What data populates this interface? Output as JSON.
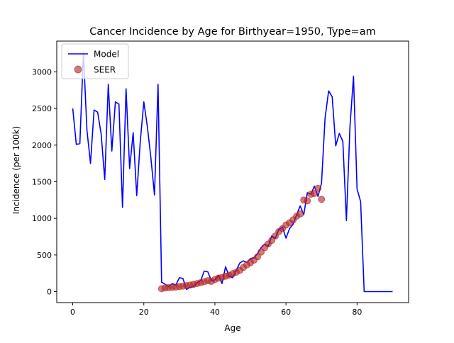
{
  "chart_data": {
    "type": "line",
    "title": "Cancer Incidence by Age for Birthyear=1950, Type=am",
    "xlabel": "Age",
    "ylabel": "Incidence (per 100k)",
    "xlim": [
      -4.5,
      94.5
    ],
    "ylim": [
      -150,
      3420
    ],
    "xticks": [
      0,
      20,
      40,
      60,
      80
    ],
    "yticks": [
      0,
      500,
      1000,
      1500,
      2000,
      2500,
      3000
    ],
    "grid": false,
    "legend_position": "top-left",
    "series": [
      {
        "name": "Model",
        "kind": "line",
        "color": "#0000ff",
        "x": [
          0,
          1,
          2,
          3,
          4,
          5,
          6,
          7,
          8,
          9,
          10,
          11,
          12,
          13,
          14,
          15,
          16,
          17,
          18,
          19,
          20,
          21,
          22,
          23,
          24,
          25,
          26,
          27,
          28,
          29,
          30,
          31,
          32,
          33,
          34,
          35,
          36,
          37,
          38,
          39,
          40,
          41,
          42,
          43,
          44,
          45,
          46,
          47,
          48,
          49,
          50,
          51,
          52,
          53,
          54,
          55,
          56,
          57,
          58,
          59,
          60,
          61,
          62,
          63,
          64,
          65,
          66,
          67,
          68,
          69,
          70,
          71,
          72,
          73,
          74,
          75,
          76,
          77,
          78,
          79,
          80,
          81,
          82,
          83,
          84,
          85,
          86,
          87,
          88,
          89,
          90
        ],
        "y": [
          2500,
          2010,
          2020,
          3260,
          2200,
          1750,
          2480,
          2450,
          2150,
          1530,
          2830,
          1920,
          2590,
          2560,
          1150,
          2770,
          1680,
          2170,
          1310,
          2050,
          2590,
          2250,
          1820,
          1320,
          2830,
          130,
          100,
          70,
          110,
          90,
          190,
          180,
          30,
          60,
          70,
          120,
          150,
          280,
          270,
          150,
          160,
          220,
          110,
          340,
          210,
          190,
          290,
          390,
          420,
          400,
          450,
          460,
          520,
          600,
          650,
          620,
          760,
          730,
          850,
          880,
          730,
          860,
          920,
          1050,
          1170,
          1050,
          1350,
          1330,
          1440,
          1300,
          1480,
          2370,
          2740,
          2660,
          1990,
          2160,
          2050,
          970,
          2250,
          2940,
          1400,
          1230,
          0,
          0,
          0,
          0,
          0,
          0,
          0,
          0,
          0
        ]
      },
      {
        "name": "SEER",
        "kind": "scatter",
        "color": "#b22222",
        "x": [
          25,
          26,
          27,
          28,
          29,
          30,
          31,
          32,
          33,
          34,
          35,
          36,
          37,
          38,
          39,
          40,
          41,
          42,
          43,
          44,
          45,
          46,
          47,
          48,
          49,
          50,
          51,
          52,
          53,
          54,
          55,
          56,
          57,
          58,
          59,
          60,
          61,
          62,
          63,
          64,
          65,
          66,
          67,
          68,
          69,
          70
        ],
        "y": [
          40,
          50,
          55,
          58,
          62,
          70,
          75,
          82,
          90,
          100,
          110,
          122,
          136,
          150,
          140,
          165,
          185,
          195,
          210,
          225,
          245,
          265,
          290,
          330,
          365,
          395,
          430,
          475,
          540,
          600,
          650,
          700,
          760,
          820,
          860,
          910,
          940,
          980,
          1030,
          1060,
          1250,
          1240,
          1330,
          1340,
          1410,
          1260
        ]
      }
    ]
  }
}
